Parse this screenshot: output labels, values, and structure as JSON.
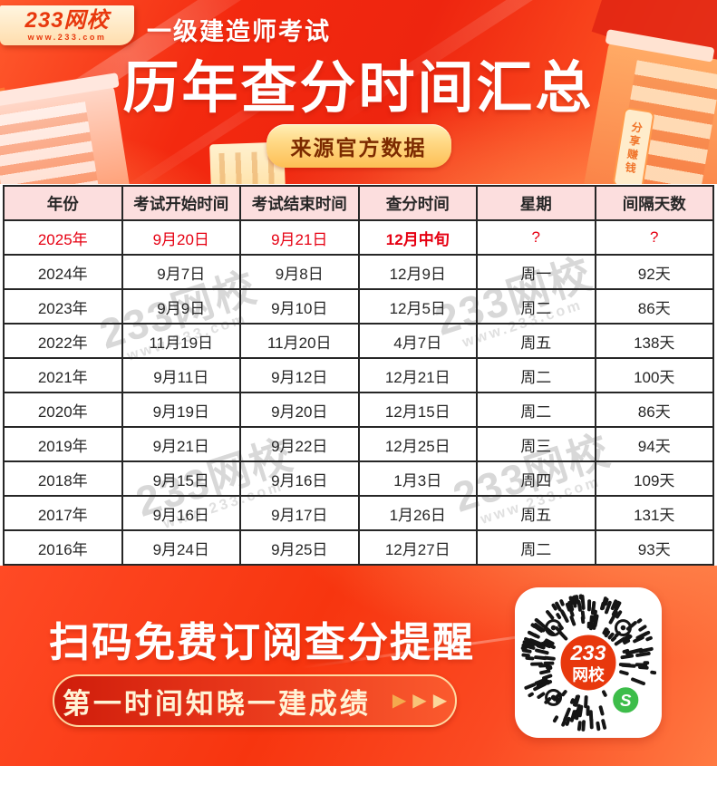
{
  "banner": {
    "logo_brand": "233网校",
    "logo_site": "www.233.com",
    "exam_label": "一级建造师考试",
    "title": "历年查分时间汇总",
    "source_badge": "来源官方数据",
    "building_sign": "分享赚钱"
  },
  "table": {
    "headers": [
      "年份",
      "考试开始时间",
      "考试结束时间",
      "查分时间",
      "星期",
      "间隔天数"
    ],
    "rows": [
      [
        "2025年",
        "9月20日",
        "9月21日",
        "12月中旬",
        "?",
        "?"
      ],
      [
        "2024年",
        "9月7日",
        "9月8日",
        "12月9日",
        "周一",
        "92天"
      ],
      [
        "2023年",
        "9月9日",
        "9月10日",
        "12月5日",
        "周二",
        "86天"
      ],
      [
        "2022年",
        "11月19日",
        "11月20日",
        "4月7日",
        "周五",
        "138天"
      ],
      [
        "2021年",
        "9月11日",
        "9月12日",
        "12月21日",
        "周二",
        "100天"
      ],
      [
        "2020年",
        "9月19日",
        "9月20日",
        "12月15日",
        "周二",
        "86天"
      ],
      [
        "2019年",
        "9月21日",
        "9月22日",
        "12月25日",
        "周三",
        "94天"
      ],
      [
        "2018年",
        "9月15日",
        "9月16日",
        "1月3日",
        "周四",
        "109天"
      ],
      [
        "2017年",
        "9月16日",
        "9月17日",
        "1月26日",
        "周五",
        "131天"
      ],
      [
        "2016年",
        "9月24日",
        "9月25日",
        "12月27日",
        "周二",
        "93天"
      ]
    ],
    "highlight_row": 0,
    "bold_cell_col": 3
  },
  "watermark": {
    "brand": "233网校",
    "site": "www.233.com"
  },
  "footer": {
    "cta_title": "扫码免费订阅查分提醒",
    "cta_sub": "第一时间知晓一建成绩",
    "qr_line1": "233",
    "qr_line2": "网校",
    "wechat_glyph": "S"
  },
  "colors": {
    "banner_red": "#f2270f",
    "banner_orange": "#ff7a40",
    "header_pink": "#fcdede",
    "table_border": "#262626",
    "highlight_red": "#e60012",
    "badge_gold": "#ffd986",
    "badge_text": "#7c2a00",
    "pill_border_gold": "#ffd9a2",
    "qr_center_red": "#e8380d",
    "wechat_green": "#3dbd4a"
  }
}
